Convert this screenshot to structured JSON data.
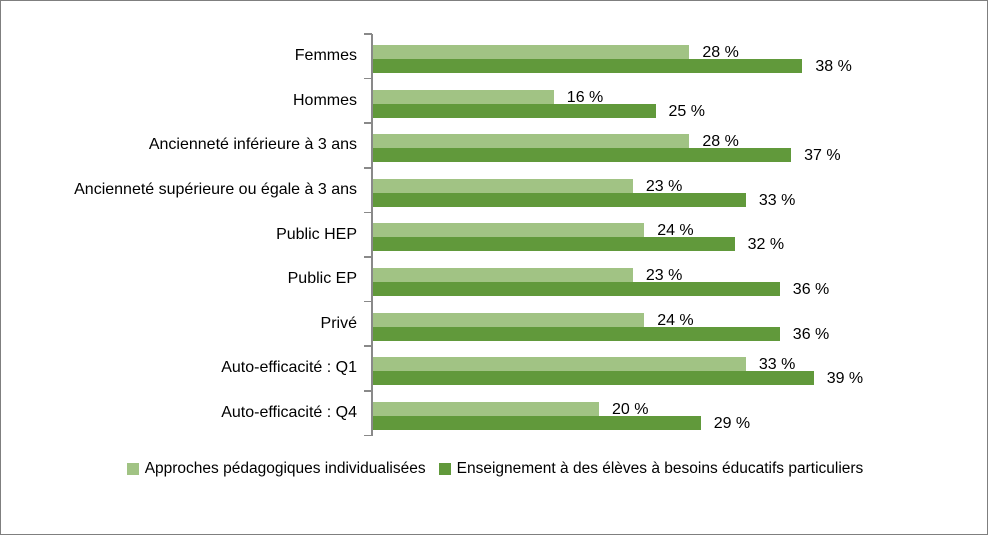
{
  "chart_data": {
    "type": "bar",
    "orientation": "horizontal",
    "categories": [
      "Femmes",
      "Hommes",
      "Ancienneté inférieure à 3 ans",
      "Ancienneté supérieure ou égale à 3 ans",
      "Public HEP",
      "Public EP",
      "Privé",
      "Auto-efficacité : Q1",
      "Auto-efficacité : Q4"
    ],
    "series": [
      {
        "name": "Approches pédagogiques individualisées",
        "color": "#A1C384",
        "values": [
          28,
          16,
          28,
          23,
          24,
          23,
          24,
          33,
          20
        ]
      },
      {
        "name": "Enseignement à des élèves à besoins éducatifs particuliers",
        "color": "#61993B",
        "values": [
          38,
          25,
          37,
          33,
          32,
          36,
          36,
          39,
          29
        ]
      }
    ],
    "value_suffix": " %",
    "xlim": [
      0,
      45
    ],
    "grid": false,
    "legend_position": "bottom",
    "axis_color": "#898989"
  },
  "frame": {
    "border_color": "#7F7F7F",
    "background": "#FFFFFF"
  }
}
